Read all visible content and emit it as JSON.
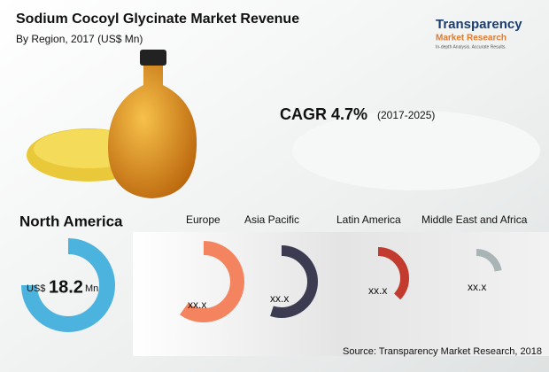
{
  "header": {
    "title": "Sodium Cocoyl Glycinate Market Revenue",
    "subtitle": "By Region, 2017 (US$ Mn)"
  },
  "logo": {
    "name": "Transparency",
    "name2": "Market Research",
    "tagline": "In-depth Analysis. Accurate Results."
  },
  "cagr": {
    "label": "CAGR 4.7%",
    "period": "(2017-2025)"
  },
  "regions": [
    {
      "name": "North America",
      "prefix": "US$",
      "value": "18.2",
      "unit": "Mn"
    },
    {
      "name": "Europe",
      "value": "xx.x"
    },
    {
      "name": "Asia Pacific",
      "value": "xx.x"
    },
    {
      "name": "Latin America",
      "value": "xx.x"
    },
    {
      "name": "Middle East and Africa",
      "value": "xx.x"
    }
  ],
  "source": "Source: Transparency Market Research, 2018"
}
